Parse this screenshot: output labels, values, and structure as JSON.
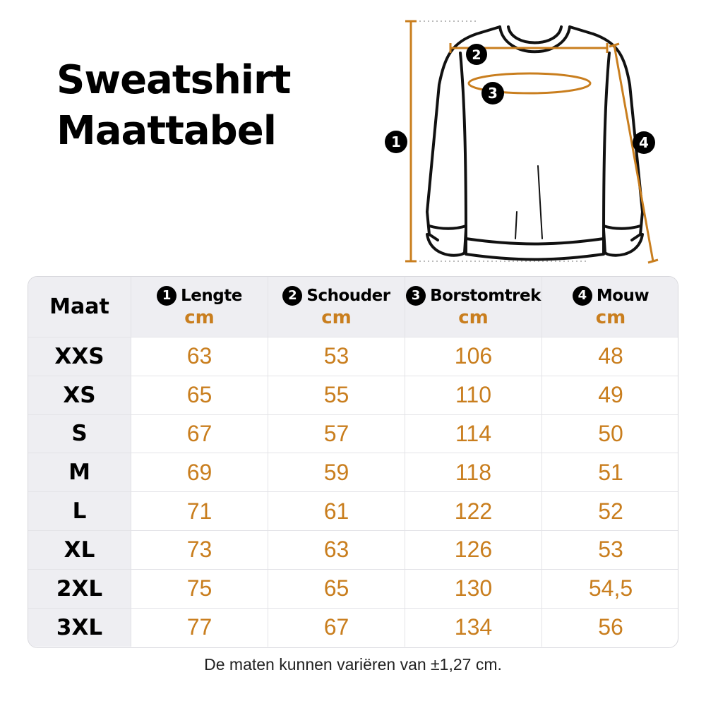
{
  "title": {
    "line1": "Sweatshirt",
    "line2": "Maattabel"
  },
  "diagram": {
    "markers": [
      "1",
      "2",
      "3",
      "4"
    ],
    "accent_color": "#c97e1e"
  },
  "table": {
    "size_header": "Maat",
    "columns": [
      {
        "number": "1",
        "label": "Lengte",
        "unit": "cm"
      },
      {
        "number": "2",
        "label": "Schouder",
        "unit": "cm"
      },
      {
        "number": "3",
        "label": "Borstomtrek",
        "unit": "cm"
      },
      {
        "number": "4",
        "label": "Mouw",
        "unit": "cm"
      }
    ],
    "rows": [
      {
        "size": "XXS",
        "values": [
          "63",
          "53",
          "106",
          "48"
        ]
      },
      {
        "size": "XS",
        "values": [
          "65",
          "55",
          "110",
          "49"
        ]
      },
      {
        "size": "S",
        "values": [
          "67",
          "57",
          "114",
          "50"
        ]
      },
      {
        "size": "M",
        "values": [
          "69",
          "59",
          "118",
          "51"
        ]
      },
      {
        "size": "L",
        "values": [
          "71",
          "61",
          "122",
          "52"
        ]
      },
      {
        "size": "XL",
        "values": [
          "73",
          "63",
          "126",
          "53"
        ]
      },
      {
        "size": "2XL",
        "values": [
          "75",
          "65",
          "130",
          "54,5"
        ]
      },
      {
        "size": "3XL",
        "values": [
          "77",
          "67",
          "134",
          "56"
        ]
      }
    ]
  },
  "footnote": "De maten kunnen variëren van ±1,27 cm."
}
